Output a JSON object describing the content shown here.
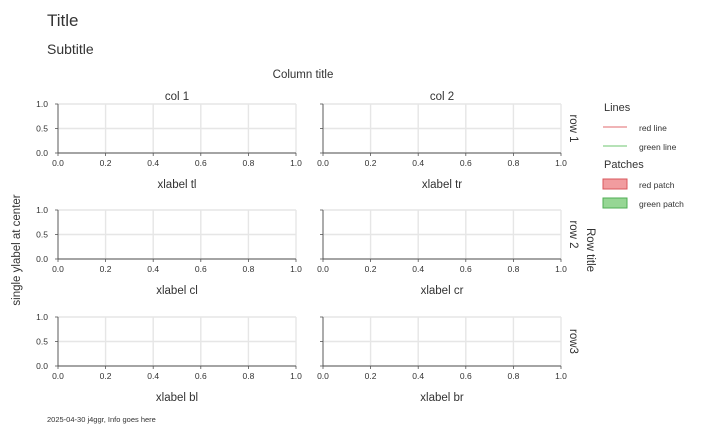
{
  "figure": {
    "title": "Title",
    "subtitle": "Subtitle",
    "column_title": "Column title",
    "row_title": "Row title",
    "ylabel": "single ylabel at center",
    "footnote": "2025-04-30 j4ggr, Info goes here"
  },
  "colors": {
    "grid": "#e6e6e6",
    "axis": "#555555",
    "red_line": "#e8868a",
    "green_line": "#8ad18c",
    "red_patch_fill": "#f19c9f",
    "red_patch_edge": "#d9575c",
    "green_patch_fill": "#96d694",
    "green_patch_edge": "#4fae53"
  },
  "legend": {
    "placement": "right",
    "lines_title": "Lines",
    "patches_title": "Patches",
    "lines": [
      {
        "label": "red line",
        "color": "#e8868a"
      },
      {
        "label": "green line",
        "color": "#8ad18c"
      }
    ],
    "patches": [
      {
        "label": "red patch",
        "fill": "#f19c9f",
        "edge": "#d9575c"
      },
      {
        "label": "green patch",
        "fill": "#96d694",
        "edge": "#4fae53"
      }
    ]
  },
  "chart_data": [
    {
      "type": "line",
      "panel": "tl",
      "column_label": "col 1",
      "row_label": "row 1",
      "xlabel": "xlabel tl",
      "xlim": [
        0,
        1
      ],
      "ylim": [
        0,
        1
      ],
      "xticks": [
        "0.0",
        "0.2",
        "0.4",
        "0.6",
        "0.8",
        "1.0"
      ],
      "yticks": [
        "0.0",
        "0.5",
        "1.0"
      ],
      "grid": true,
      "series": []
    },
    {
      "type": "line",
      "panel": "tr",
      "column_label": "col 2",
      "xlabel": "xlabel tr",
      "xlim": [
        0,
        1
      ],
      "ylim": [
        0,
        1
      ],
      "xticks": [
        "0.0",
        "0.2",
        "0.4",
        "0.6",
        "0.8",
        "1.0"
      ],
      "grid": true,
      "series": []
    },
    {
      "type": "line",
      "panel": "cl",
      "row_label": "row 2",
      "xlabel": "xlabel cl",
      "xlim": [
        0,
        1
      ],
      "ylim": [
        0,
        1
      ],
      "xticks": [
        "0.0",
        "0.2",
        "0.4",
        "0.6",
        "0.8",
        "1.0"
      ],
      "yticks": [
        "0.0",
        "0.5",
        "1.0"
      ],
      "grid": true,
      "series": []
    },
    {
      "type": "line",
      "panel": "cr",
      "xlabel": "xlabel cr",
      "xlim": [
        0,
        1
      ],
      "ylim": [
        0,
        1
      ],
      "xticks": [
        "0.0",
        "0.2",
        "0.4",
        "0.6",
        "0.8",
        "1.0"
      ],
      "grid": true,
      "series": []
    },
    {
      "type": "line",
      "panel": "bl",
      "row_label": "row3",
      "xlabel": "xlabel bl",
      "xlim": [
        0,
        1
      ],
      "ylim": [
        0,
        1
      ],
      "xticks": [
        "0.0",
        "0.2",
        "0.4",
        "0.6",
        "0.8",
        "1.0"
      ],
      "yticks": [
        "0.0",
        "0.5",
        "1.0"
      ],
      "grid": true,
      "series": []
    },
    {
      "type": "line",
      "panel": "br",
      "xlabel": "xlabel br",
      "xlim": [
        0,
        1
      ],
      "ylim": [
        0,
        1
      ],
      "xticks": [
        "0.0",
        "0.2",
        "0.4",
        "0.6",
        "0.8",
        "1.0"
      ],
      "grid": true,
      "series": []
    }
  ]
}
